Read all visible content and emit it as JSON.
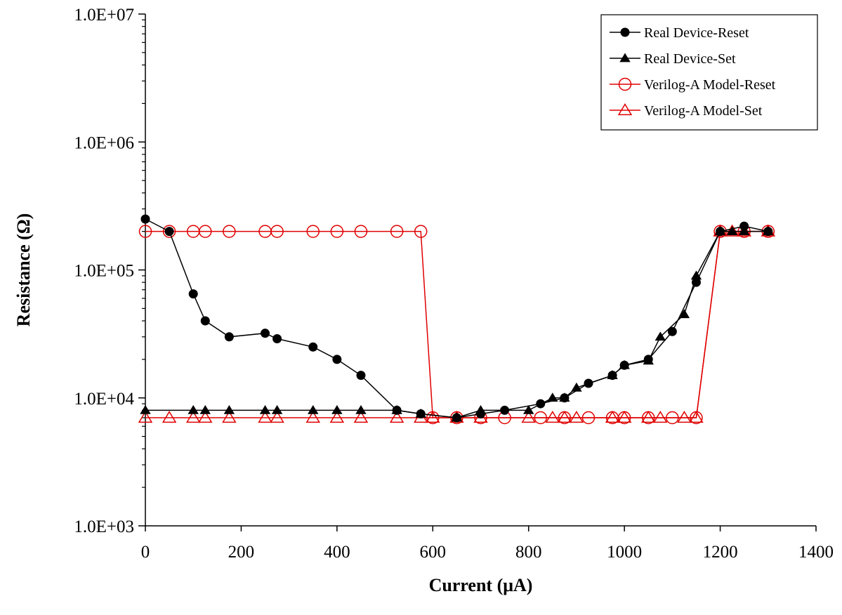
{
  "chart_data": {
    "type": "line",
    "xlabel": "Current (μA)",
    "ylabel": "Resistance (Ω)",
    "xlim": [
      0,
      1400
    ],
    "ylim": [
      1000,
      10000000
    ],
    "y_scale": "log",
    "x_ticks": [
      0,
      200,
      400,
      600,
      800,
      1000,
      1200,
      1400
    ],
    "x_tick_labels": [
      "0",
      "200",
      "400",
      "600",
      "800",
      "1000",
      "1200",
      "1400"
    ],
    "y_ticks": [
      1000,
      10000,
      100000,
      1000000,
      10000000
    ],
    "y_tick_labels": [
      "1.0E+03",
      "1.0E+04",
      "1.0E+05",
      "1.0E+06",
      "1.0E+07"
    ],
    "grid": false,
    "legend_position": "top-right",
    "series": [
      {
        "name": "Real Device-Reset",
        "color": "#000000",
        "marker": "filled-circle",
        "x": [
          0,
          50,
          100,
          125,
          175,
          250,
          275,
          350,
          400,
          450,
          525,
          575,
          650,
          700,
          750,
          825,
          875,
          925,
          975,
          1000,
          1050,
          1100,
          1150,
          1200,
          1250,
          1300
        ],
        "y": [
          250000,
          200000,
          65000,
          40000,
          30000,
          32000,
          29000,
          25000,
          20000,
          15000,
          8000,
          7500,
          7000,
          7500,
          8000,
          9000,
          10000,
          13000,
          15000,
          18000,
          20000,
          33000,
          80000,
          200000,
          220000,
          200000
        ]
      },
      {
        "name": "Real Device-Set",
        "color": "#000000",
        "marker": "filled-triangle",
        "x": [
          0,
          100,
          125,
          175,
          250,
          275,
          350,
          400,
          450,
          525,
          575,
          650,
          700,
          800,
          850,
          875,
          900,
          975,
          1000,
          1050,
          1075,
          1125,
          1150,
          1200,
          1225,
          1250,
          1300
        ],
        "y": [
          8000,
          8000,
          8000,
          8000,
          8000,
          8000,
          8000,
          8000,
          8000,
          8000,
          7500,
          7000,
          8000,
          8000,
          10000,
          10000,
          12000,
          15000,
          18000,
          19500,
          30000,
          45000,
          90000,
          200000,
          200000,
          200000,
          200000
        ]
      },
      {
        "name": "Verilog-A Model-Reset",
        "color": "#e00000",
        "marker": "open-circle",
        "x": [
          0,
          50,
          100,
          125,
          175,
          250,
          275,
          350,
          400,
          450,
          525,
          575,
          600,
          650,
          700,
          750,
          825,
          875,
          925,
          975,
          1000,
          1050,
          1100,
          1150,
          1200,
          1250,
          1300
        ],
        "y": [
          200000,
          200000,
          200000,
          200000,
          200000,
          200000,
          200000,
          200000,
          200000,
          200000,
          200000,
          200000,
          7000,
          7000,
          7000,
          7000,
          7000,
          7000,
          7000,
          7000,
          7000,
          7000,
          7000,
          7000,
          200000,
          200000,
          200000
        ]
      },
      {
        "name": "Verilog-A Model-Set",
        "color": "#e00000",
        "marker": "open-triangle",
        "x": [
          0,
          50,
          100,
          125,
          175,
          250,
          275,
          350,
          400,
          450,
          525,
          575,
          600,
          650,
          700,
          800,
          850,
          875,
          900,
          975,
          1000,
          1050,
          1075,
          1125,
          1150,
          1200,
          1225,
          1250,
          1300
        ],
        "y": [
          7000,
          7000,
          7000,
          7000,
          7000,
          7000,
          7000,
          7000,
          7000,
          7000,
          7000,
          7000,
          7000,
          7000,
          7000,
          7000,
          7000,
          7000,
          7000,
          7000,
          7000,
          7000,
          7000,
          7000,
          7000,
          200000,
          200000,
          200000,
          200000
        ]
      }
    ]
  }
}
